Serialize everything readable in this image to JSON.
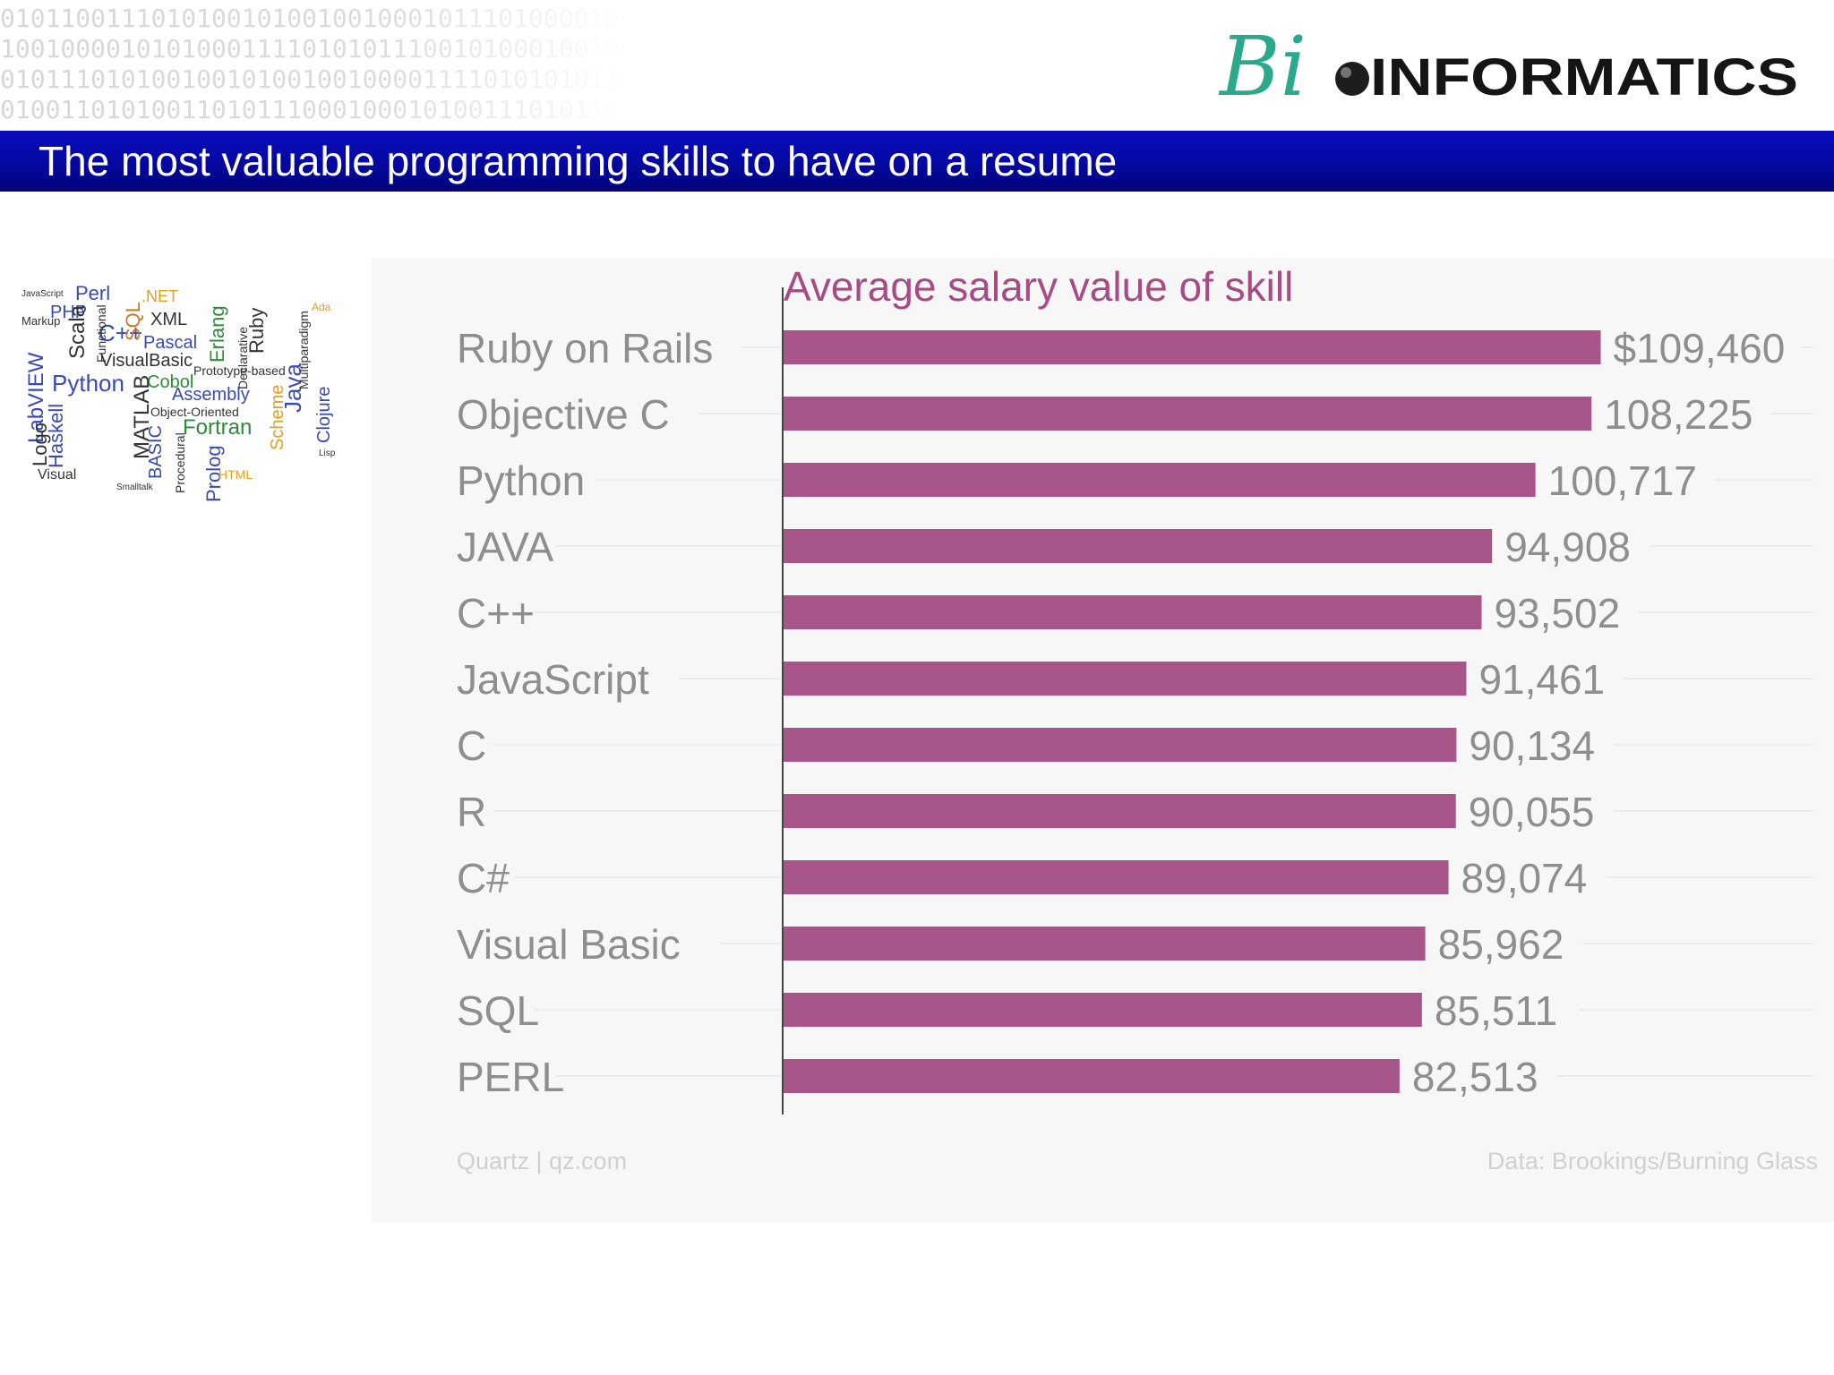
{
  "header": {
    "binary_rows": [
      "010110011101010010100100100010111010000100101101010",
      "100100001010100011110101011100101000100100101001010",
      "010111010100100101001001000011110101010110101001011",
      "010011010100110101110001000101001110101101001010010"
    ],
    "logo": {
      "script_part": "Bi",
      "text_part": "INFORMATICS"
    },
    "slide_title": "The most valuable programming skills to have on a resume"
  },
  "word_cloud": {
    "words": [
      {
        "text": "Perl",
        "color": "#3a4ab0"
      },
      {
        "text": ".NET",
        "color": "#e0a020"
      },
      {
        "text": "PHP",
        "color": "#3a4ab0"
      },
      {
        "text": "XML",
        "color": "#333333"
      },
      {
        "text": "C++",
        "color": "#3a4ab0"
      },
      {
        "text": "SQL",
        "color": "#c77a20"
      },
      {
        "text": "Pascal",
        "color": "#3a4ab0"
      },
      {
        "text": "VisualBasic",
        "color": "#333333"
      },
      {
        "text": "Python",
        "color": "#3a4ab0"
      },
      {
        "text": "Cobol",
        "color": "#2e8b3a"
      },
      {
        "text": "Assembly",
        "color": "#3a4ab0"
      },
      {
        "text": "Fortran",
        "color": "#2e8b3a"
      },
      {
        "text": "Ruby",
        "color": "#333333"
      },
      {
        "text": "Java",
        "color": "#3a4ab0"
      },
      {
        "text": "Clojure",
        "color": "#3a4ab0"
      },
      {
        "text": "Haskell",
        "color": "#3a4ab0"
      },
      {
        "text": "LabVIEW",
        "color": "#3a4ab0"
      },
      {
        "text": "Scala",
        "color": "#333333"
      },
      {
        "text": "Erlang",
        "color": "#2e8b3a"
      },
      {
        "text": "MATLAB",
        "color": "#333333"
      },
      {
        "text": "BASIC",
        "color": "#3a4ab0"
      },
      {
        "text": "Prolog",
        "color": "#3a4ab0"
      },
      {
        "text": "Logo",
        "color": "#333333"
      },
      {
        "text": "Scheme",
        "color": "#e0a020"
      },
      {
        "text": "Object-Oriented",
        "color": "#333333"
      },
      {
        "text": "Markup",
        "color": "#333333"
      },
      {
        "text": "Visual",
        "color": "#333333"
      },
      {
        "text": "HTML",
        "color": "#e0a020"
      },
      {
        "text": "JavaScript",
        "color": "#333333"
      },
      {
        "text": "Functional",
        "color": "#333333"
      },
      {
        "text": "Procedural",
        "color": "#333333"
      },
      {
        "text": "Declarative",
        "color": "#333333"
      },
      {
        "text": "Prototype-based",
        "color": "#333333"
      },
      {
        "text": "Multiparadigm",
        "color": "#333333"
      },
      {
        "text": "Smalltalk",
        "color": "#333333"
      },
      {
        "text": "Ada",
        "color": "#e0a020"
      },
      {
        "text": "Lisp",
        "color": "#333333"
      }
    ]
  },
  "chart_data": {
    "type": "bar",
    "orientation": "horizontal",
    "title": "Average salary value of skill",
    "categories": [
      "Ruby on Rails",
      "Objective C",
      "Python",
      "JAVA",
      "C++",
      "JavaScript",
      "C",
      "R",
      "C#",
      "Visual Basic",
      "SQL",
      "PERL"
    ],
    "values": [
      109460,
      108225,
      100717,
      94908,
      93502,
      91461,
      90134,
      90055,
      89074,
      85962,
      85511,
      82513
    ],
    "value_labels": [
      "$109,460",
      "108,225",
      "100,717",
      "94,908",
      "93,502",
      "91,461",
      "90,134",
      "90,055",
      "89,074",
      "85,962",
      "85,511",
      "82,513"
    ],
    "xlim": [
      0,
      110000
    ],
    "xlabel": "",
    "ylabel": "",
    "bar_color": "#a8558a",
    "source_left": "Quartz | qz.com",
    "source_right": "Data: Brookings/Burning Glass"
  },
  "colors": {
    "title_bar": "#0509a6",
    "chart_title": "#a84b84",
    "category_label": "#8e8e8e",
    "value_label": "#8e8e8e",
    "logo_teal": "#2aaa8a",
    "logo_text": "#151515"
  }
}
